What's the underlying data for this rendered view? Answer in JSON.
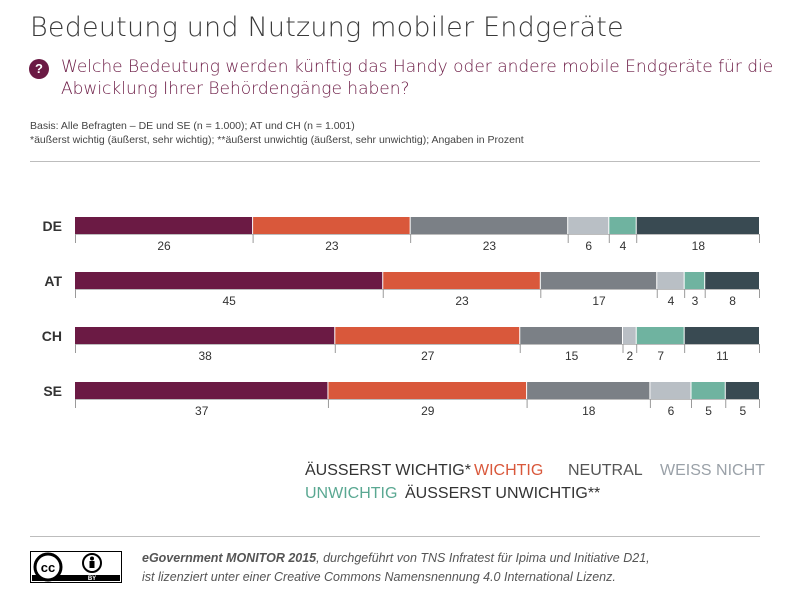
{
  "header": {
    "title": "Bedeutung und Nutzung mobiler Endgeräte",
    "question_icon": "?",
    "question": "Welche Bedeutung werden künftig das Handy oder andere mobile Endgeräte für die Abwicklung Ihrer Behördengänge haben?",
    "basis_line1": "Basis: Alle Befragten – DE und SE (n = 1.000); AT und CH (n = 1.001)",
    "basis_line2": "*äußerst wichtig (äußerst, sehr wichtig); **äußerst unwichtig (äußerst, sehr unwichtig); Angaben in Prozent"
  },
  "chart_data": {
    "type": "bar",
    "orientation": "horizontal",
    "stacked": true,
    "categories": [
      "DE",
      "AT",
      "CH",
      "SE"
    ],
    "series": [
      {
        "name": "ÄUSSERST WICHTIG*",
        "color": "#6b1a44",
        "values": [
          26,
          45,
          38,
          37
        ]
      },
      {
        "name": "WICHTIG",
        "color": "#d9583b",
        "values": [
          23,
          23,
          27,
          29
        ]
      },
      {
        "name": "NEUTRAL",
        "color": "#7b8086",
        "values": [
          23,
          17,
          15,
          18
        ]
      },
      {
        "name": "WEISS NICHT",
        "color": "#b9bfc5",
        "values": [
          6,
          4,
          2,
          6
        ]
      },
      {
        "name": "UNWICHTIG",
        "color": "#6fb3a0",
        "values": [
          4,
          3,
          7,
          5
        ]
      },
      {
        "name": "ÄUSSERST UNWICHTIG**",
        "color": "#394a52",
        "values": [
          18,
          8,
          11,
          5
        ]
      }
    ],
    "unit": "Prozent",
    "legend_position": "bottom-right"
  },
  "footer": {
    "cc_label": "cc",
    "by_label": "BY",
    "source_bold": "eGovernment MONITOR 2015",
    "source_rest": ", durchgeführt von TNS Infratest für Ipima und Initiative D21,",
    "license": "ist lizenziert unter einer Creative Commons Namensnennung 4.0 International Lizenz."
  }
}
